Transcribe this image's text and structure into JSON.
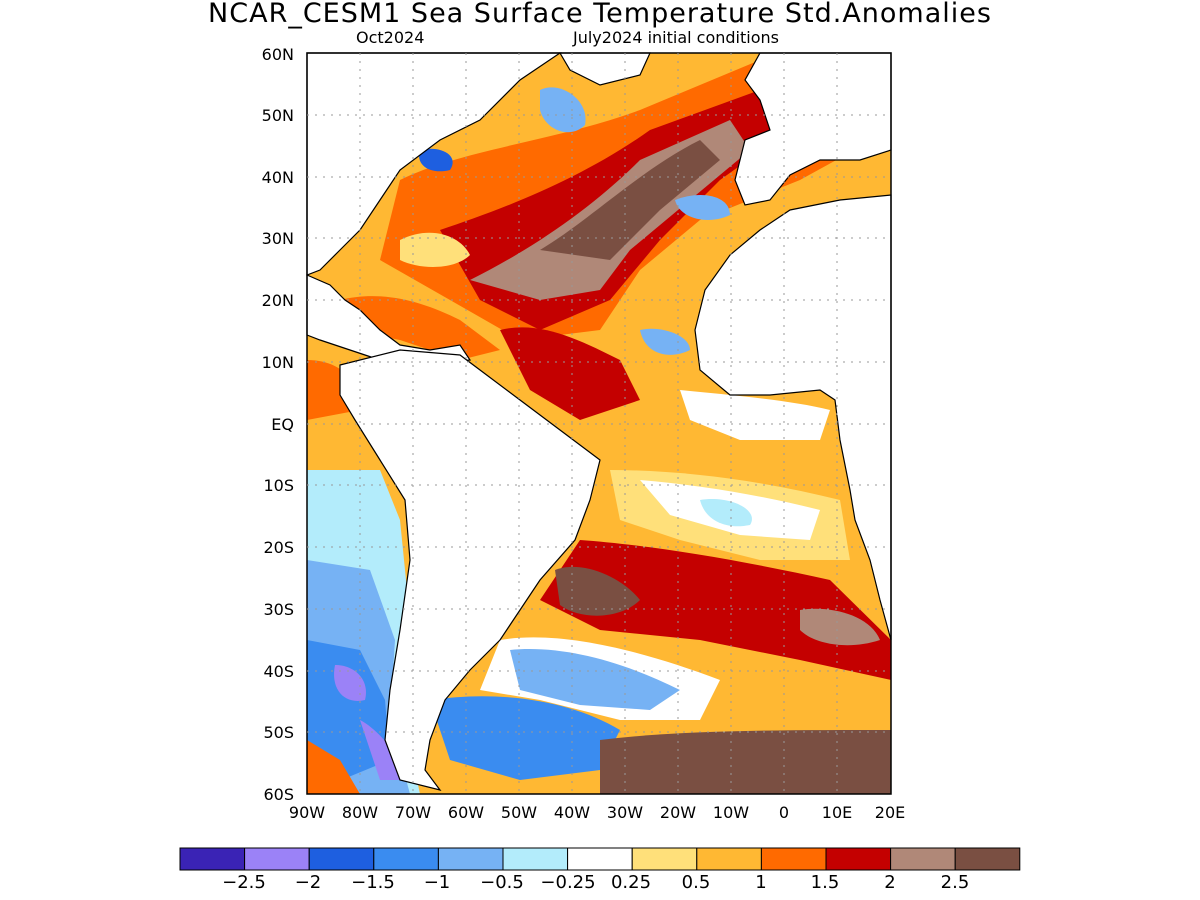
{
  "title": "NCAR_CESM1 Sea Surface Temperature Std.Anomalies",
  "forecast_month": "Oct2024",
  "initial_conditions": "July2024 initial conditions",
  "lat_labels": [
    "60N",
    "50N",
    "40N",
    "30N",
    "20N",
    "10N",
    "EQ",
    "10S",
    "20S",
    "30S",
    "40S",
    "50S",
    "60S"
  ],
  "lon_labels": [
    "90W",
    "80W",
    "70W",
    "60W",
    "50W",
    "40W",
    "30W",
    "20W",
    "10W",
    "0",
    "10E",
    "20E"
  ],
  "colorbar": {
    "colors": [
      "#3a23b5",
      "#9b82f7",
      "#1e5fe0",
      "#3a8cf0",
      "#76b2f4",
      "#b3ecfb",
      "#ffffff",
      "#ffe07a",
      "#ffb833",
      "#ff6a00",
      "#c40000",
      "#b08878",
      "#7a4f42"
    ],
    "labels": [
      "−2.5",
      "−2",
      "−1.5",
      "−1",
      "−0.5",
      "−0.25",
      "0.25",
      "0.5",
      "1",
      "1.5",
      "2",
      "2.5"
    ]
  },
  "domain": {
    "lon_range": [
      -90,
      20
    ],
    "lat_range": [
      -60,
      60
    ]
  }
}
